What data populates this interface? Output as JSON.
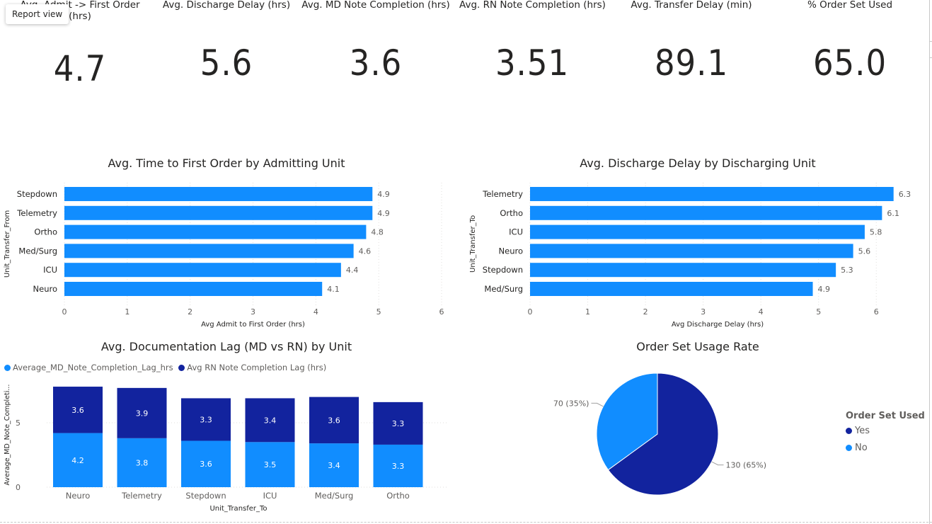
{
  "tooltip": "Report view",
  "kpis": [
    {
      "title_line1": "Avg. Admit -> First Order",
      "title_line2": "(hrs)",
      "value": "4.7"
    },
    {
      "title_line1": "Avg. Discharge Delay (hrs)",
      "title_line2": "",
      "value": "5.6"
    },
    {
      "title_line1": "Avg. MD Note Completion (hrs)",
      "title_line2": "",
      "value": "3.6"
    },
    {
      "title_line1": "Avg. RN Note Completion (hrs)",
      "title_line2": "",
      "value": "3.51"
    },
    {
      "title_line1": "Avg. Transfer Delay (min)",
      "title_line2": "",
      "value": "89.1"
    },
    {
      "title_line1": "% Order Set Used",
      "title_line2": "",
      "value": "65.0"
    }
  ],
  "colors": {
    "light_blue": "#118dff",
    "dark_blue": "#12239e",
    "grid": "#e1dfdd",
    "axis_text": "#605e5c"
  },
  "chart_data": [
    {
      "type": "bar",
      "orientation": "horizontal",
      "title": "Avg. Time to First Order by Admitting Unit",
      "categories": [
        "Stepdown",
        "Telemetry",
        "Ortho",
        "Med/Surg",
        "ICU",
        "Neuro"
      ],
      "values": [
        4.9,
        4.9,
        4.8,
        4.6,
        4.4,
        4.1
      ],
      "data_labels": [
        "4.9",
        "4.9",
        "4.8",
        "4.6",
        "4.4",
        "4.1"
      ],
      "xlabel": "Avg Admit to First Order (hrs)",
      "ylabel": "Unit_Transfer_From",
      "xlim": [
        0,
        6
      ],
      "xticks": [
        "0",
        "1",
        "2",
        "3",
        "4",
        "5",
        "6"
      ],
      "grid": true
    },
    {
      "type": "bar",
      "orientation": "horizontal",
      "title": "Avg. Discharge Delay by Discharging Unit",
      "categories": [
        "Telemetry",
        "Ortho",
        "ICU",
        "Neuro",
        "Stepdown",
        "Med/Surg"
      ],
      "values": [
        6.3,
        6.1,
        5.8,
        5.6,
        5.3,
        4.9
      ],
      "data_labels": [
        "6.3",
        "6.1",
        "5.8",
        "5.6",
        "5.3",
        "4.9"
      ],
      "xlabel": "Avg Discharge Delay (hrs)",
      "ylabel": "Unit_Transfer_To",
      "xlim": [
        0,
        6.5
      ],
      "xticks": [
        "0",
        "1",
        "2",
        "3",
        "4",
        "5",
        "6"
      ],
      "grid": true
    },
    {
      "type": "bar",
      "stacked": true,
      "title": "Avg. Documentation Lag (MD vs RN) by Unit",
      "categories": [
        "Neuro",
        "Telemetry",
        "Stepdown",
        "ICU",
        "Med/Surg",
        "Ortho"
      ],
      "series": [
        {
          "name": "Average_MD_Note_Completion_Lag_hrs",
          "values": [
            4.2,
            3.8,
            3.6,
            3.5,
            3.4,
            3.3
          ],
          "labels": [
            "4.2",
            "3.8",
            "3.6",
            "3.5",
            "3.4",
            "3.3"
          ]
        },
        {
          "name": "Avg RN Note Completion Lag (hrs)",
          "values": [
            3.6,
            3.9,
            3.3,
            3.4,
            3.6,
            3.3
          ],
          "labels": [
            "3.6",
            "3.9",
            "3.3",
            "3.4",
            "3.6",
            "3.3"
          ]
        }
      ],
      "xlabel": "Unit_Transfer_To",
      "ylabel": "Average_MD_Note_Completi...",
      "ylim": [
        0,
        8
      ],
      "yticks": [
        "0",
        "5"
      ],
      "legend": "top-left",
      "grid": true
    },
    {
      "type": "pie",
      "title": "Order Set Usage Rate",
      "legend_title": "Order Set Used",
      "legend": "right",
      "slices": [
        {
          "label": "Yes",
          "value": 130,
          "percent": 65,
          "data_label": "130 (65%)"
        },
        {
          "label": "No",
          "value": 70,
          "percent": 35,
          "data_label": "70 (35%)"
        }
      ]
    }
  ]
}
